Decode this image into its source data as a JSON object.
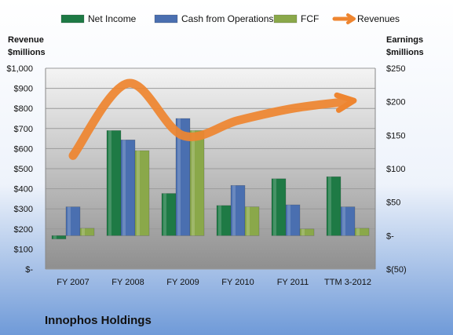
{
  "chart_data": {
    "type": "bar",
    "title": "Innophos Holdings",
    "categories": [
      "FY 2007",
      "FY 2008",
      "FY 2009",
      "FY 2010",
      "FY 2011",
      "TTM 3-2012"
    ],
    "left_axis": {
      "label_line1": "Revenue",
      "label_line2": "$millions",
      "ylim": [
        0,
        1000
      ],
      "ticks": [
        0,
        100,
        200,
        300,
        400,
        500,
        600,
        700,
        800,
        900,
        1000
      ],
      "tick_labels": [
        "$-",
        "$100",
        "$200",
        "$300",
        "$400",
        "$500",
        "$600",
        "$700",
        "$800",
        "$900",
        "$1,000"
      ]
    },
    "right_axis": {
      "label_line1": "Earnings",
      "label_line2": "$millions",
      "ylim": [
        -50,
        250
      ],
      "ticks": [
        -50,
        0,
        50,
        100,
        150,
        200,
        250
      ],
      "tick_labels": [
        "$(50)",
        "$-",
        "$50",
        "$100",
        "$150",
        "$200",
        "$250"
      ]
    },
    "series": [
      {
        "name": "Net Income",
        "type": "bar",
        "axis": "right",
        "color": "#1e7a45",
        "values": [
          -5,
          157,
          63,
          45,
          85,
          88
        ]
      },
      {
        "name": "Cash from Operations",
        "type": "bar",
        "axis": "right",
        "color": "#4a6fb0",
        "values": [
          43,
          143,
          175,
          75,
          46,
          43
        ]
      },
      {
        "name": "FCF",
        "type": "bar",
        "axis": "right",
        "color": "#8aa84a",
        "values": [
          11,
          127,
          157,
          43,
          10,
          11
        ]
      },
      {
        "name": "Revenues",
        "type": "line",
        "axis": "left",
        "color": "#ee8530",
        "values": [
          565,
          925,
          665,
          740,
          800,
          835
        ]
      }
    ],
    "legend_position": "top",
    "grid": true
  }
}
